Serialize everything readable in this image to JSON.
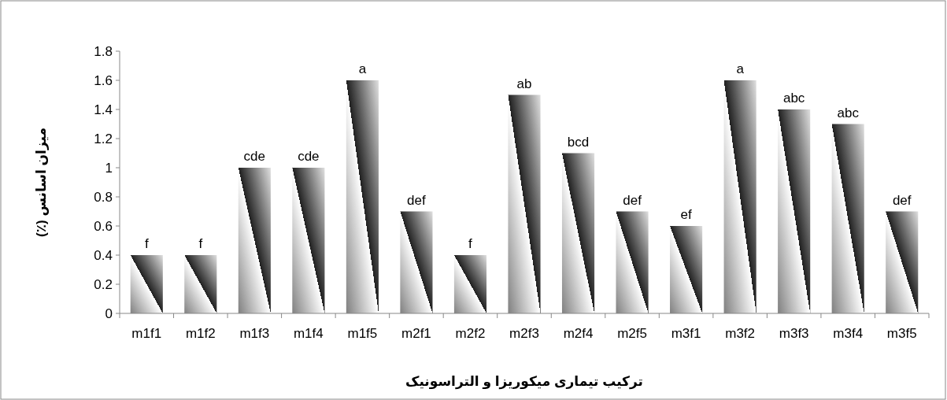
{
  "chart_data": {
    "type": "bar",
    "xlabel": "ترکیب تیماری میکوریزا و التراسونیک",
    "ylabel": "میزان اسانس (٪)",
    "categories": [
      "m1f1",
      "m1f2",
      "m1f3",
      "m1f4",
      "m1f5",
      "m2f1",
      "m2f2",
      "m2f3",
      "m2f4",
      "m2f5",
      "m3f1",
      "m3f2",
      "m3f3",
      "m3f4",
      "m3f5"
    ],
    "values": [
      0.4,
      0.4,
      1,
      1,
      1.6,
      0.7,
      0.4,
      1.5,
      1.1,
      0.7,
      0.6,
      1.6,
      1.4,
      1.3,
      0.7
    ],
    "value_labels": [
      "f",
      "f",
      "cde",
      "cde",
      "a",
      "def",
      "f",
      "ab",
      "bcd",
      "def",
      "ef",
      "a",
      "abc",
      "abc",
      "def"
    ],
    "color": "#808080",
    "ylim": [
      0,
      1.8
    ],
    "yticks": [
      0,
      0.2,
      0.4,
      0.6,
      0.8,
      1,
      1.2,
      1.4,
      1.6,
      1.8
    ],
    "grid": false
  }
}
